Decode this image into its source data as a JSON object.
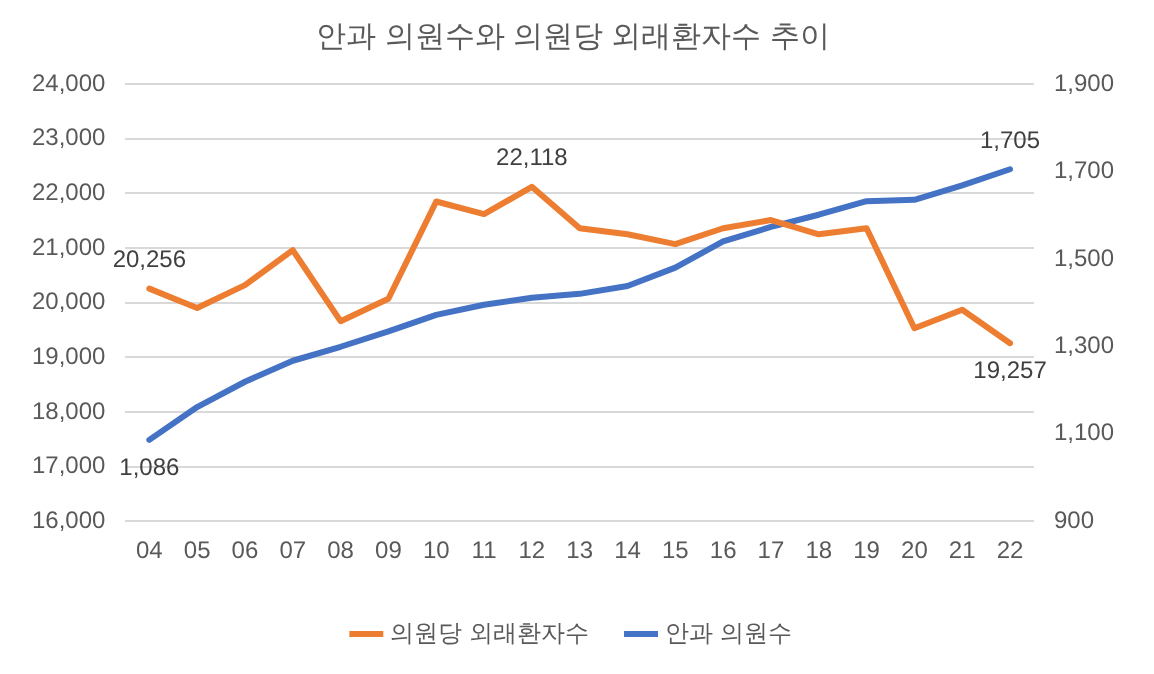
{
  "chart_data": {
    "type": "line",
    "title": "안과 의원수와 의원당 외래환자수 추이",
    "categories": [
      "04",
      "05",
      "06",
      "07",
      "08",
      "09",
      "10",
      "11",
      "12",
      "13",
      "14",
      "15",
      "16",
      "17",
      "18",
      "19",
      "20",
      "21",
      "22"
    ],
    "series": [
      {
        "name": "의원당 외래환자수",
        "color": "#ed7d31",
        "values": [
          20256,
          19900,
          20320,
          20960,
          19660,
          20070,
          21850,
          21620,
          22118,
          21360,
          21250,
          21070,
          21360,
          21510,
          21250,
          21360,
          19530,
          19870,
          19257
        ],
        "value_labels": [
          "20,256",
          null,
          null,
          null,
          null,
          null,
          null,
          null,
          "22,118",
          null,
          null,
          null,
          null,
          null,
          null,
          null,
          null,
          null,
          "19,257"
        ]
      },
      {
        "name": "안과 의원수",
        "color": "#4472c4",
        "axis": "y2",
        "values": [
          1086,
          1161,
          1219,
          1267,
          1299,
          1334,
          1372,
          1395,
          1411,
          1420,
          1438,
          1480,
          1540,
          1573,
          1601,
          1632,
          1635,
          1668,
          1705
        ],
        "value_labels": [
          "1,086",
          null,
          null,
          null,
          null,
          null,
          null,
          null,
          null,
          null,
          null,
          null,
          null,
          null,
          null,
          null,
          null,
          null,
          "1,705"
        ]
      }
    ],
    "ylim": [
      16000,
      24000
    ],
    "yticks": [
      {
        "value": 16000,
        "label": "16,000"
      },
      {
        "value": 17000,
        "label": "17,000"
      },
      {
        "value": 18000,
        "label": "18,000"
      },
      {
        "value": 19000,
        "label": "19,000"
      },
      {
        "value": 20000,
        "label": "20,000"
      },
      {
        "value": 21000,
        "label": "21,000"
      },
      {
        "value": 22000,
        "label": "22,000"
      },
      {
        "value": 23000,
        "label": "23,000"
      },
      {
        "value": 24000,
        "label": "24,000"
      }
    ],
    "y2lim": [
      900,
      1900
    ],
    "y2ticks": [
      900,
      {
        "value": 1100,
        "label": "1,100"
      },
      {
        "value": 1300,
        "label": "1,300"
      },
      {
        "value": 1500,
        "label": "1,500"
      },
      {
        "value": 1700,
        "label": "1,700"
      },
      {
        "value": 1900,
        "label": "1,900"
      }
    ],
    "grid": "y",
    "legend": "bottom",
    "marker": "none",
    "line_style": "solid"
  }
}
